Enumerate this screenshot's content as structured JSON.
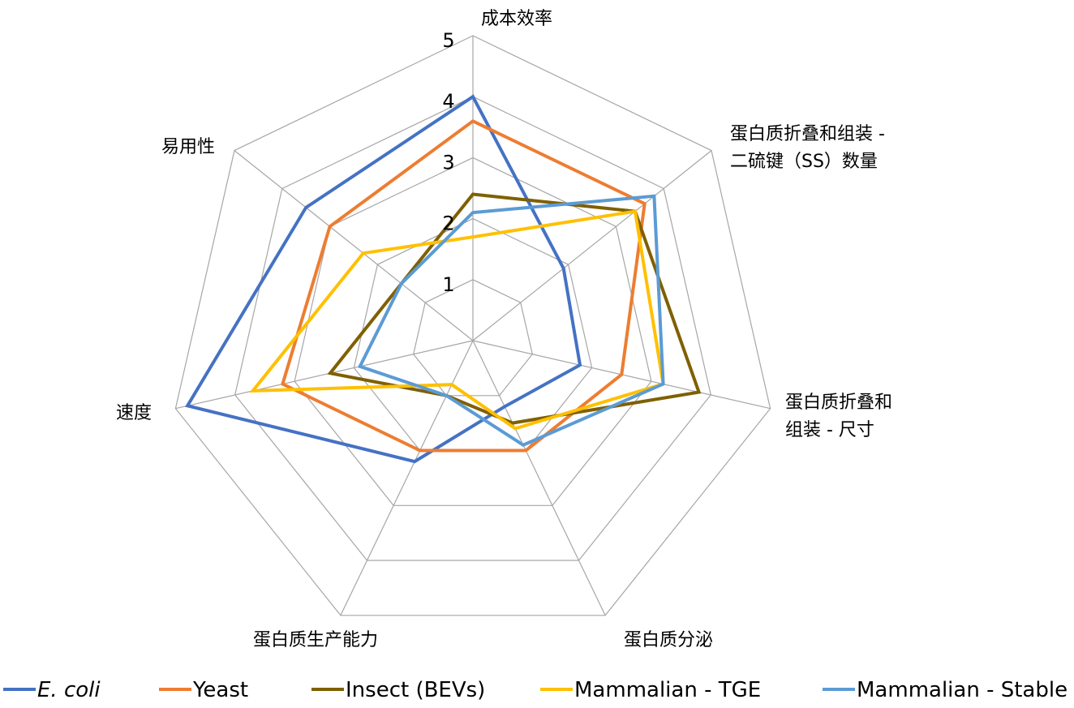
{
  "chart_data": {
    "type": "radar",
    "scale": {
      "min": 0,
      "max": 5,
      "ticks": [
        "1",
        "2",
        "3",
        "4",
        "5"
      ],
      "tick_values": [
        1,
        2,
        3,
        4,
        5
      ]
    },
    "grid": true,
    "legend_position": "bottom",
    "axes": [
      {
        "lines": [
          "成本效率"
        ]
      },
      {
        "lines": [
          "蛋白质折叠和组装 -",
          "二硫键（SS）数量"
        ]
      },
      {
        "lines": [
          "蛋白质折叠和",
          "组装 - 尺寸"
        ]
      },
      {
        "lines": [
          "蛋白质分泌"
        ]
      },
      {
        "lines": [
          "蛋白质生产能力"
        ]
      },
      {
        "lines": [
          "速度"
        ]
      },
      {
        "lines": [
          "易用性"
        ]
      }
    ],
    "series": [
      {
        "name": "E. coli",
        "italic": true,
        "color": "#4472C4",
        "values": [
          4.0,
          1.9,
          1.8,
          1.2,
          2.2,
          4.8,
          3.5
        ]
      },
      {
        "name": "Yeast",
        "color": "#ED7D31",
        "values": [
          3.6,
          3.6,
          2.5,
          2.0,
          2.0,
          3.2,
          3.0
        ]
      },
      {
        "name": "Insect (BEVs)",
        "color": "#7F6000",
        "values": [
          2.4,
          3.4,
          3.8,
          1.5,
          1.0,
          2.4,
          1.5
        ]
      },
      {
        "name": "Mammalian - TGE",
        "color": "#FFC000",
        "values": [
          1.7,
          3.4,
          3.2,
          1.6,
          0.8,
          3.7,
          2.3
        ]
      },
      {
        "name": "Mammalian - Stable",
        "color": "#5B9BD5",
        "values": [
          2.1,
          3.8,
          3.2,
          1.9,
          1.0,
          1.9,
          1.5
        ]
      }
    ]
  }
}
